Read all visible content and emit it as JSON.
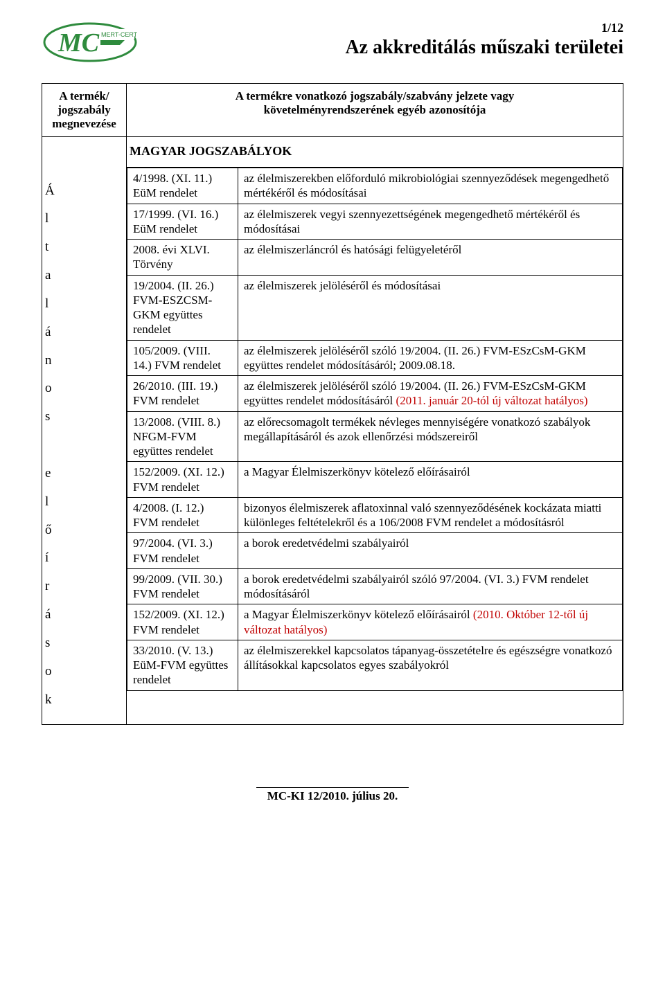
{
  "page_number": "1/12",
  "main_title": "Az akkreditálás műszaki területei",
  "header_left": "A termék/\njogszabály\nmegnevezése",
  "header_right": "A termékre vonatkozó jogszabály/szabvány jelzete vagy\nkövetelményrendszerének egyéb azonosítója",
  "section_title": "MAGYAR JOGSZABÁLYOK",
  "vertical_label": [
    "Á",
    "l",
    "t",
    "a",
    "l",
    "á",
    "n",
    "o",
    "s",
    "",
    "e",
    "l",
    "ő",
    "í",
    "r",
    "á",
    "s",
    "o",
    "k"
  ],
  "rows": [
    {
      "l": "4/1998. (XI. 11.) EüM rendelet",
      "r": "az élelmiszerekben előforduló mikrobiológiai szennyeződések megengedhető mértékéről és módosításai"
    },
    {
      "l": "17/1999. (VI. 16.) EüM rendelet",
      "r": "az élelmiszerek vegyi szennyezettségének megengedhető mértékéről és módosításai"
    },
    {
      "l": "2008. évi XLVI. Törvény",
      "r": "az élelmiszerláncról és hatósági felügyeletéről"
    },
    {
      "l": "19/2004. (II. 26.) FVM-ESZCSM-GKM együttes rendelet",
      "r": "az élelmiszerek jelöléséről és módosításai"
    },
    {
      "l": "105/2009. (VIII. 14.) FVM rendelet",
      "r": "az élelmiszerek jelöléséről szóló 19/2004. (II. 26.) FVM-ESzCsM-GKM együttes rendelet módosításáról; 2009.08.18."
    },
    {
      "l": "26/2010. (III. 19.) FVM rendelet",
      "r": "az élelmiszerek jelöléséről szóló 19/2004. (II. 26.) FVM-ESzCsM-GKM együttes rendelet módosításáról ",
      "r_red": "(2011. január 20-tól új változat hatályos)"
    },
    {
      "l": "13/2008. (VIII. 8.) NFGM-FVM együttes rendelet",
      "r": "az előrecsomagolt termékek névleges mennyiségére vonatkozó szabályok megállapításáról és azok ellenőrzési módszereiről"
    },
    {
      "l": "152/2009. (XI. 12.) FVM rendelet",
      "r": "a Magyar Élelmiszerkönyv kötelező előírásairól"
    },
    {
      "l": "4/2008. (I. 12.) FVM rendelet",
      "r": "bizonyos élelmiszerek aflatoxinnal való szennyeződésének kockázata miatti különleges feltételekről és a 106/2008 FVM rendelet a módosításról"
    },
    {
      "l": "97/2004. (VI. 3.) FVM rendelet",
      "r": "a borok eredetvédelmi szabályairól"
    },
    {
      "l": "99/2009. (VII. 30.) FVM rendelet",
      "r": "a borok eredetvédelmi szabályairól szóló 97/2004. (VI. 3.) FVM rendelet módosításáról"
    },
    {
      "l": "152/2009. (XI. 12.) FVM rendelet",
      "r": "a Magyar Élelmiszerkönyv kötelező előírásairól ",
      "r_red": "(2010. Október 12-től új változat hatályos)"
    },
    {
      "l": "33/2010. (V. 13.) EüM-FVM együttes rendelet",
      "r": "az élelmiszerekkel kapcsolatos tápanyag-összetételre és egészségre vonatkozó állításokkal kapcsolatos egyes szabályokról"
    }
  ],
  "footer": "MC-KI 12/2010. július 20.",
  "colors": {
    "red": "#c00000",
    "green": "#2e8b3d"
  },
  "logo_text_big": "MC",
  "logo_text_small": "MERT-CERT"
}
